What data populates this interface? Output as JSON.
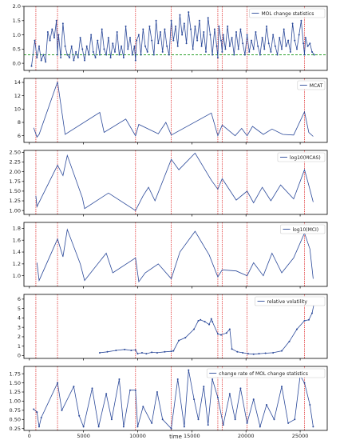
{
  "chart_data": {
    "type": "line",
    "xlabel": "time",
    "xlim": [
      -500,
      27500
    ],
    "xticks": [
      0,
      5000,
      10000,
      15000,
      20000,
      25000
    ],
    "vlines": [
      600,
      2600,
      9800,
      13100,
      17400,
      17800,
      20100,
      25400
    ],
    "vline_color": "#e03030",
    "line_color": "#2c4a9a",
    "panels": [
      {
        "legend": "MOL change statistics",
        "ylim": [
          -0.25,
          2.0
        ],
        "yticks": [
          0.0,
          0.5,
          1.0,
          1.5,
          2.0
        ],
        "tick_decimals": 1,
        "hline": 0.3,
        "hline_color": "#2ca02c",
        "markers": true,
        "x": [
          200,
          500,
          700,
          900,
          1100,
          1300,
          1500,
          1700,
          1900,
          2100,
          2300,
          2500,
          2600,
          2700,
          2900,
          3100,
          3300,
          3500,
          3700,
          3900,
          4100,
          4300,
          4500,
          4700,
          4900,
          5100,
          5300,
          5500,
          5700,
          5900,
          6100,
          6300,
          6500,
          6700,
          6900,
          7100,
          7300,
          7500,
          7700,
          7900,
          8100,
          8300,
          8500,
          8700,
          8900,
          9100,
          9300,
          9500,
          9700,
          9800,
          9900,
          10100,
          10300,
          10500,
          10700,
          10900,
          11100,
          11300,
          11500,
          11700,
          11900,
          12100,
          12300,
          12500,
          12700,
          12900,
          13100,
          13300,
          13500,
          13700,
          13900,
          14100,
          14300,
          14500,
          14700,
          14900,
          15100,
          15300,
          15500,
          15700,
          15900,
          16100,
          16300,
          16500,
          16700,
          16900,
          17100,
          17300,
          17400,
          17500,
          17700,
          17800,
          17900,
          18100,
          18300,
          18500,
          18700,
          18900,
          19100,
          19300,
          19500,
          19700,
          19900,
          20100,
          20300,
          20500,
          20700,
          20900,
          21100,
          21300,
          21500,
          21700,
          21900,
          22100,
          22300,
          22500,
          22700,
          22900,
          23100,
          23300,
          23500,
          23700,
          23900,
          24100,
          24300,
          24500,
          24700,
          24900,
          25100,
          25300,
          25400,
          25500,
          25700,
          25900,
          26100,
          26300
        ],
        "y": [
          -0.1,
          0.8,
          0.2,
          0.6,
          0.1,
          0.3,
          0.05,
          1.1,
          0.8,
          1.2,
          0.9,
          1.5,
          0.3,
          1.0,
          0.2,
          1.4,
          0.6,
          0.3,
          0.2,
          0.6,
          0.1,
          0.4,
          0.2,
          0.9,
          0.5,
          0.1,
          0.6,
          0.3,
          1.0,
          0.4,
          0.2,
          0.8,
          0.3,
          1.2,
          0.5,
          0.3,
          0.9,
          0.2,
          0.7,
          0.4,
          1.1,
          0.3,
          0.6,
          0.2,
          1.3,
          0.5,
          0.9,
          0.3,
          0.6,
          0.1,
          0.8,
          1.0,
          0.3,
          1.2,
          0.6,
          0.4,
          1.3,
          0.8,
          0.3,
          1.5,
          0.7,
          1.1,
          0.4,
          1.2,
          0.6,
          0.3,
          1.5,
          0.8,
          1.3,
          0.6,
          1.7,
          1.0,
          1.4,
          0.7,
          1.8,
          1.2,
          0.5,
          1.3,
          0.8,
          1.5,
          0.6,
          1.1,
          0.4,
          1.6,
          1.0,
          0.3,
          1.2,
          0.6,
          0.2,
          1.3,
          0.8,
          0.4,
          1.0,
          0.5,
          1.3,
          0.6,
          0.9,
          0.3,
          1.1,
          0.5,
          1.2,
          0.7,
          0.3,
          1.0,
          0.4,
          0.8,
          0.5,
          1.1,
          0.6,
          0.3,
          0.9,
          0.5,
          1.3,
          0.7,
          0.4,
          1.0,
          0.6,
          0.3,
          0.9,
          0.5,
          1.2,
          0.6,
          0.8,
          0.4,
          1.4,
          0.8,
          0.5,
          1.0,
          1.5,
          0.7,
          0.3,
          0.9,
          0.6,
          0.7,
          0.4,
          0.3
        ]
      },
      {
        "legend": "MCAT",
        "ylim": [
          5.0,
          14.6
        ],
        "yticks": [
          6,
          8,
          10,
          12,
          14
        ],
        "tick_decimals": 0,
        "markers": false,
        "x": [
          400,
          700,
          900,
          2600,
          3300,
          6500,
          6900,
          8900,
          9800,
          10100,
          11900,
          12600,
          13100,
          16800,
          17400,
          17800,
          19000,
          19600,
          20100,
          20600,
          21600,
          22400,
          23400,
          24400,
          25400,
          25800,
          26200
        ],
        "y": [
          7.2,
          5.8,
          6.2,
          14.1,
          6.2,
          9.5,
          6.5,
          8.5,
          6.0,
          7.7,
          6.3,
          8.0,
          6.1,
          9.4,
          6.0,
          7.6,
          6.0,
          7.1,
          6.0,
          7.4,
          6.2,
          7.0,
          6.2,
          6.1,
          9.6,
          6.5,
          5.9
        ]
      },
      {
        "legend": "log10(MCAS)",
        "ylim": [
          0.9,
          2.55
        ],
        "yticks": [
          1.0,
          1.25,
          1.5,
          1.75,
          2.0,
          2.25,
          2.5
        ],
        "tick_decimals": 2,
        "markers": false,
        "x": [
          600,
          700,
          2600,
          3100,
          3500,
          4900,
          5100,
          7300,
          9800,
          10500,
          11000,
          11600,
          13100,
          13800,
          15300,
          16800,
          17400,
          17800,
          19100,
          20100,
          20700,
          21500,
          22300,
          23200,
          24400,
          25400,
          25800,
          26200
        ],
        "y": [
          1.38,
          1.1,
          2.17,
          1.9,
          2.42,
          1.32,
          1.05,
          1.45,
          1.0,
          1.38,
          1.6,
          1.25,
          2.32,
          2.05,
          2.48,
          1.78,
          1.55,
          1.82,
          1.27,
          1.5,
          1.2,
          1.6,
          1.25,
          1.66,
          1.3,
          2.05,
          1.65,
          1.22
        ]
      },
      {
        "legend": "log10(MCI)",
        "ylim": [
          0.82,
          1.9
        ],
        "yticks": [
          1.0,
          1.2,
          1.4,
          1.6,
          1.8
        ],
        "tick_decimals": 1,
        "markers": false,
        "x": [
          700,
          900,
          2600,
          3100,
          3500,
          4700,
          5100,
          7100,
          7700,
          9800,
          10100,
          10700,
          11900,
          13100,
          13900,
          15300,
          16600,
          17400,
          17800,
          19100,
          20100,
          20700,
          21600,
          22400,
          23300,
          24400,
          25400,
          25900,
          26200
        ],
        "y": [
          1.22,
          0.92,
          1.62,
          1.32,
          1.78,
          1.2,
          0.92,
          1.38,
          1.05,
          1.3,
          0.9,
          1.05,
          1.2,
          0.95,
          1.4,
          1.75,
          1.35,
          0.98,
          1.1,
          1.08,
          1.0,
          1.22,
          1.0,
          1.38,
          1.05,
          1.3,
          1.72,
          1.45,
          0.95
        ]
      },
      {
        "legend": "relative volatility",
        "ylim": [
          -0.3,
          6.5
        ],
        "yticks": [
          0,
          1,
          2,
          3,
          4,
          5,
          6
        ],
        "tick_decimals": 0,
        "markers": true,
        "x": [
          6500,
          7200,
          8000,
          8800,
          9400,
          9800,
          10000,
          10400,
          10800,
          11300,
          11800,
          12500,
          13100,
          13300,
          13800,
          14400,
          15200,
          15600,
          15800,
          16200,
          16600,
          16800,
          16900,
          17400,
          17700,
          18200,
          18500,
          18700,
          19200,
          19700,
          20200,
          20700,
          21200,
          21800,
          22500,
          23300,
          24000,
          24700,
          25400,
          25800,
          26100,
          26300
        ],
        "y": [
          0.3,
          0.4,
          0.55,
          0.65,
          0.55,
          0.6,
          0.2,
          0.3,
          0.2,
          0.35,
          0.3,
          0.4,
          0.45,
          0.5,
          1.6,
          1.9,
          2.8,
          3.7,
          3.8,
          3.6,
          3.3,
          3.9,
          3.6,
          2.3,
          2.2,
          2.4,
          2.8,
          0.7,
          0.4,
          0.3,
          0.2,
          0.15,
          0.2,
          0.25,
          0.3,
          0.5,
          1.5,
          2.8,
          3.7,
          3.8,
          4.5,
          5.6
        ]
      },
      {
        "legend": "change rate of MOL change statistics",
        "ylim": [
          0.2,
          1.95
        ],
        "yticks": [
          0.25,
          0.5,
          0.75,
          1.0,
          1.25,
          1.5,
          1.75
        ],
        "tick_decimals": 2,
        "markers": true,
        "x": [
          400,
          700,
          900,
          1100,
          2600,
          3000,
          4100,
          4600,
          5000,
          5800,
          6400,
          7100,
          7600,
          8300,
          8700,
          9300,
          9800,
          10000,
          10500,
          11300,
          11800,
          12300,
          13100,
          13700,
          14300,
          14700,
          15200,
          15600,
          16100,
          16500,
          16900,
          17400,
          17900,
          18500,
          19000,
          19500,
          20100,
          20700,
          21300,
          21900,
          22600,
          23300,
          23900,
          24500,
          25000,
          25400,
          25900,
          26200
        ],
        "y": [
          0.78,
          0.7,
          0.3,
          0.55,
          1.5,
          0.75,
          1.4,
          0.6,
          0.3,
          1.35,
          0.3,
          1.2,
          0.5,
          1.6,
          0.3,
          1.3,
          1.3,
          0.3,
          0.85,
          0.4,
          1.25,
          0.5,
          0.25,
          1.6,
          0.3,
          1.85,
          1.05,
          0.5,
          1.4,
          0.35,
          1.6,
          1.1,
          0.35,
          1.2,
          0.5,
          1.35,
          0.4,
          1.05,
          0.3,
          0.9,
          0.5,
          1.4,
          0.4,
          0.5,
          1.7,
          1.5,
          0.9,
          0.3
        ]
      }
    ]
  }
}
